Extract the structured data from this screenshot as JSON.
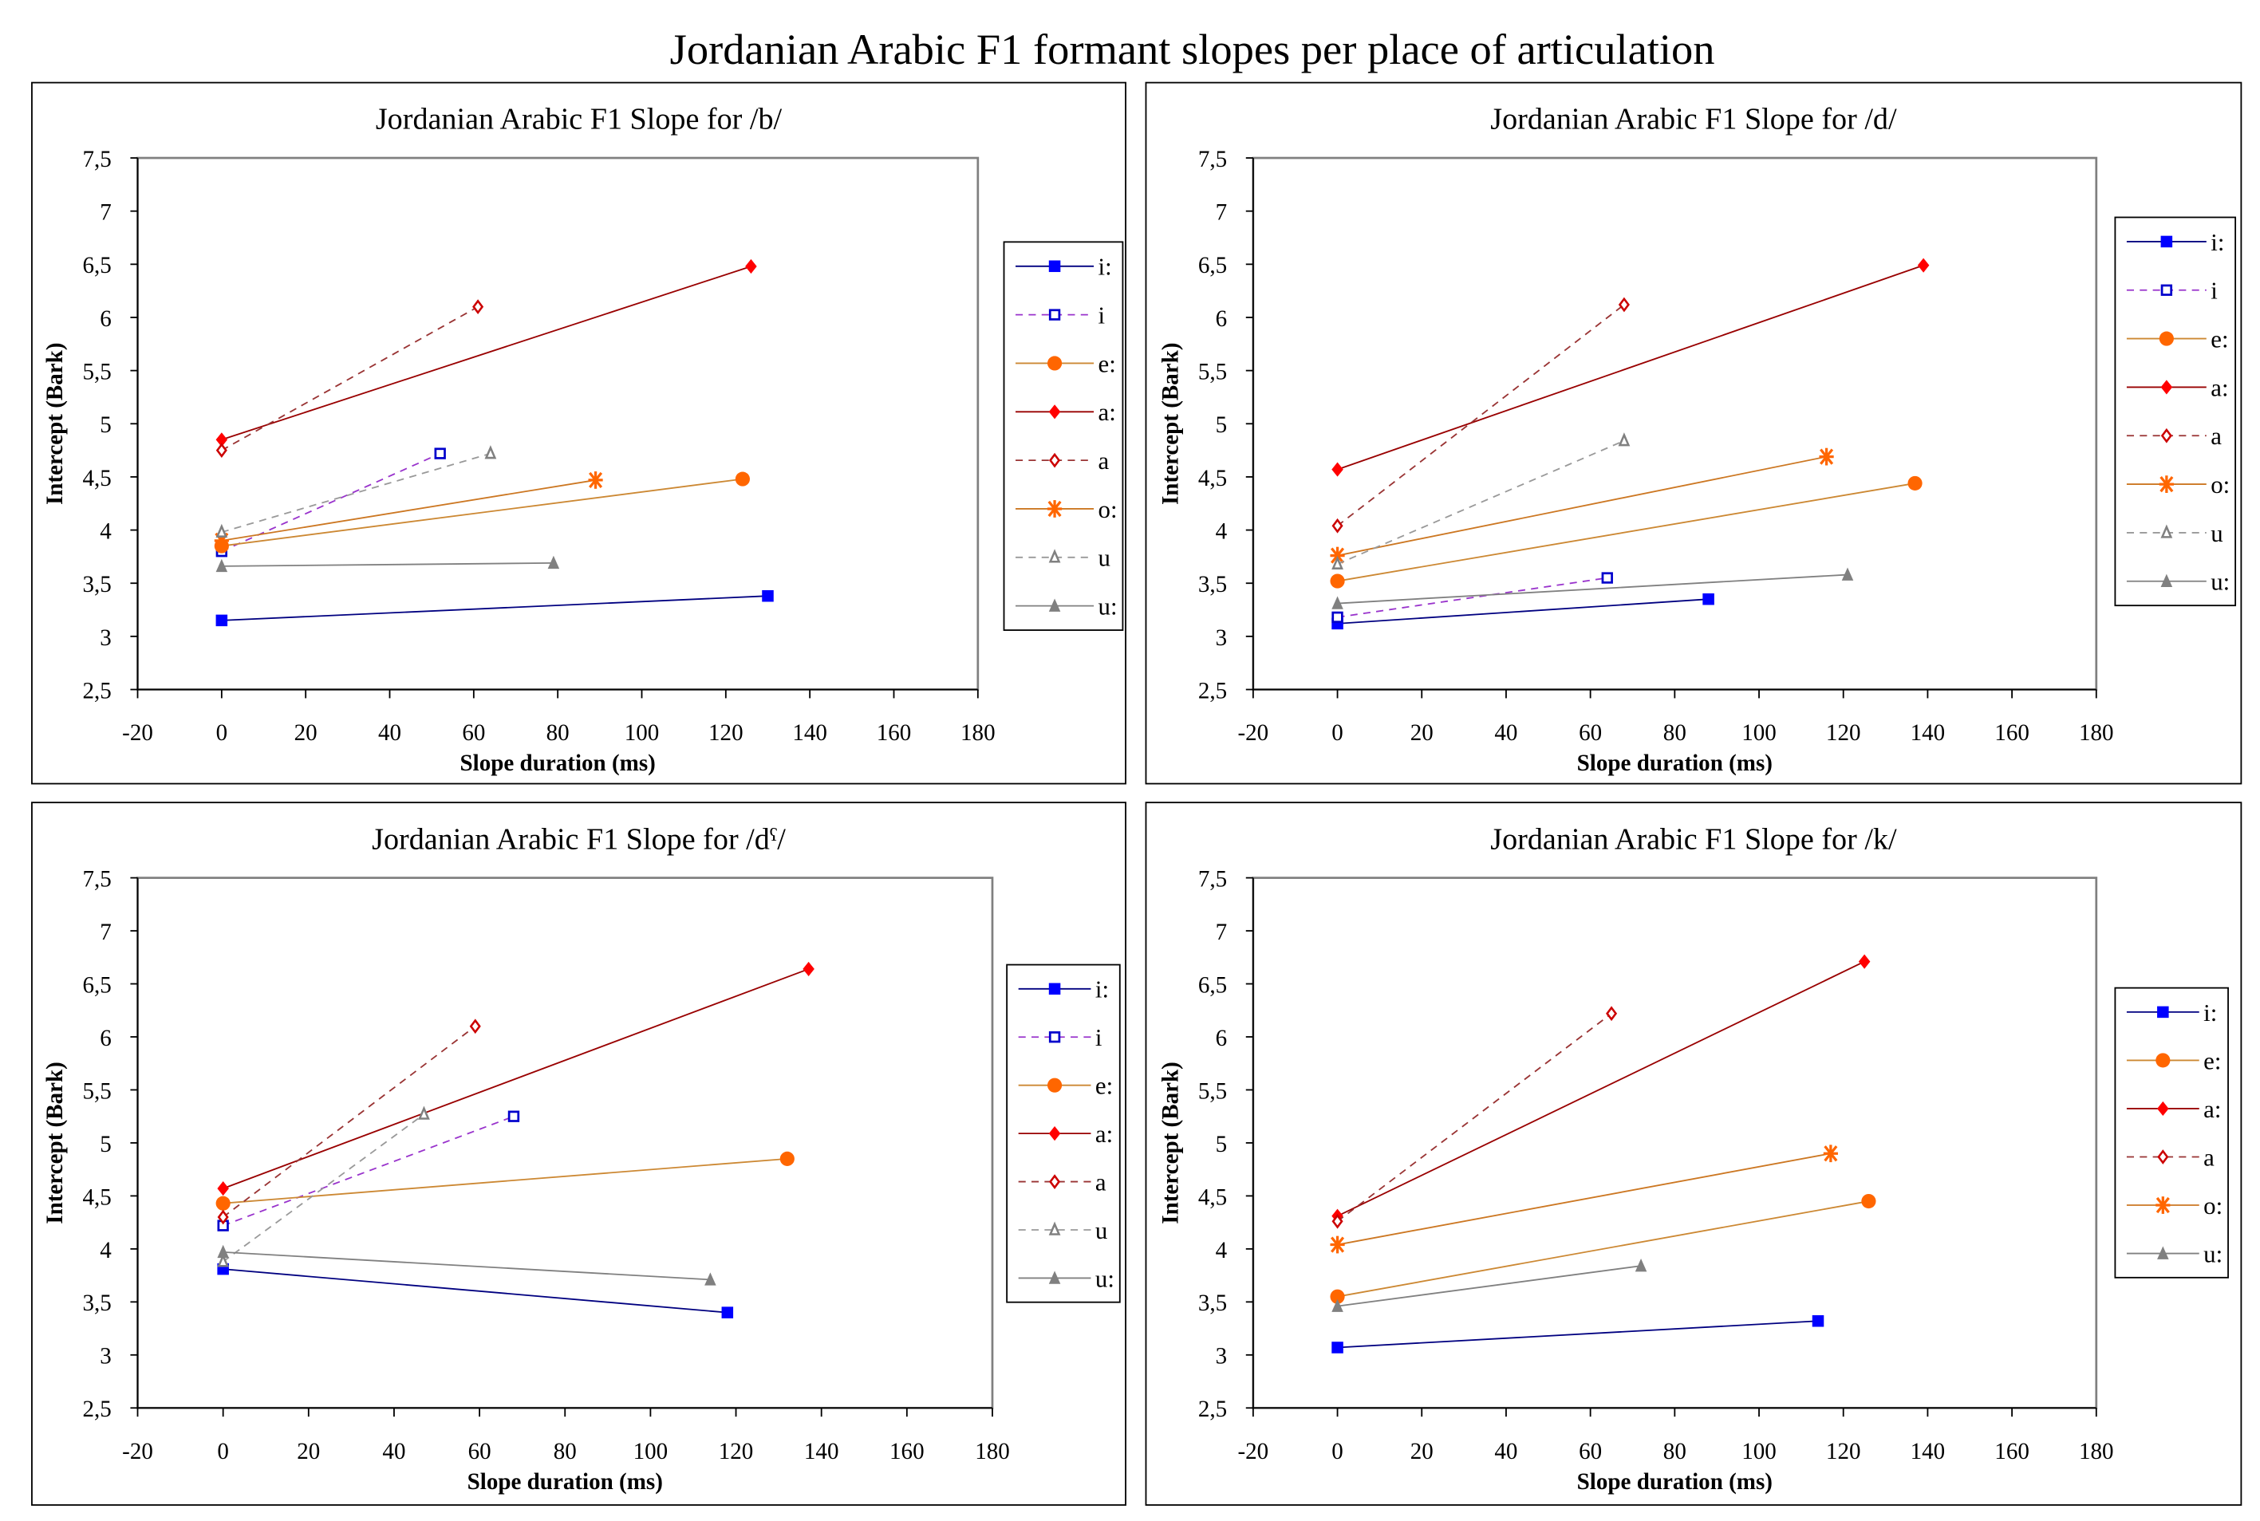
{
  "main_title": "Jordanian Arabic F1  formant slopes per place of articulation",
  "chart_data": [
    {
      "type": "line",
      "title": "Jordanian Arabic F1 Slope for /b/",
      "xlabel": "Slope duration (ms)",
      "ylabel": "Intercept (Bark)",
      "xlim": [
        -20,
        180
      ],
      "ylim": [
        2.5,
        7.5
      ],
      "xticks": [
        "-20",
        "0",
        "20",
        "40",
        "60",
        "80",
        "100",
        "120",
        "140",
        "160",
        "180"
      ],
      "yticks": [
        "2,5",
        "3",
        "3,5",
        "4",
        "4,5",
        "5",
        "5,5",
        "6",
        "6,5",
        "7",
        "7,5"
      ],
      "legend": "right",
      "series": [
        {
          "name": "i:",
          "x": [
            0,
            130
          ],
          "y": [
            3.15,
            3.38
          ]
        },
        {
          "name": "i",
          "x": [
            0,
            52
          ],
          "y": [
            3.8,
            4.72
          ]
        },
        {
          "name": "e:",
          "x": [
            0,
            124
          ],
          "y": [
            3.85,
            4.48
          ]
        },
        {
          "name": "a:",
          "x": [
            0,
            126
          ],
          "y": [
            4.85,
            6.48
          ]
        },
        {
          "name": "a",
          "x": [
            0,
            61
          ],
          "y": [
            4.75,
            6.1
          ]
        },
        {
          "name": "o:",
          "x": [
            0,
            89
          ],
          "y": [
            3.9,
            4.47
          ]
        },
        {
          "name": "u",
          "x": [
            0,
            64
          ],
          "y": [
            3.98,
            4.72
          ]
        },
        {
          "name": "u:",
          "x": [
            0,
            79
          ],
          "y": [
            3.66,
            3.69
          ]
        }
      ]
    },
    {
      "type": "line",
      "title": "Jordanian Arabic F1 Slope for /d/",
      "xlabel": "Slope duration (ms)",
      "ylabel": "Intercept (Bark)",
      "xlim": [
        -20,
        180
      ],
      "ylim": [
        2.5,
        7.5
      ],
      "xticks": [
        "-20",
        "0",
        "20",
        "40",
        "60",
        "80",
        "100",
        "120",
        "140",
        "160",
        "180"
      ],
      "yticks": [
        "2,5",
        "3",
        "3,5",
        "4",
        "4,5",
        "5",
        "5,5",
        "6",
        "6,5",
        "7",
        "7,5"
      ],
      "legend": "right",
      "series": [
        {
          "name": "i:",
          "x": [
            0,
            88
          ],
          "y": [
            3.12,
            3.35
          ]
        },
        {
          "name": "i",
          "x": [
            0,
            64
          ],
          "y": [
            3.18,
            3.55
          ]
        },
        {
          "name": "e:",
          "x": [
            0,
            137
          ],
          "y": [
            3.52,
            4.44
          ]
        },
        {
          "name": "a:",
          "x": [
            0,
            139
          ],
          "y": [
            4.57,
            6.49
          ]
        },
        {
          "name": "a",
          "x": [
            0,
            68
          ],
          "y": [
            4.04,
            6.12
          ]
        },
        {
          "name": "o:",
          "x": [
            0,
            116
          ],
          "y": [
            3.76,
            4.69
          ]
        },
        {
          "name": "u",
          "x": [
            0,
            68
          ],
          "y": [
            3.68,
            4.84
          ]
        },
        {
          "name": "u:",
          "x": [
            0,
            121
          ],
          "y": [
            3.31,
            3.58
          ]
        }
      ]
    },
    {
      "type": "line",
      "title": "Jordanian Arabic F1 Slope for /dˤ/",
      "xlabel": "Slope duration (ms)",
      "ylabel": "Intercept (Bark)",
      "xlim": [
        -20,
        180
      ],
      "ylim": [
        2.5,
        7.5
      ],
      "xticks": [
        "-20",
        "0",
        "20",
        "40",
        "60",
        "80",
        "100",
        "120",
        "140",
        "160",
        "180"
      ],
      "yticks": [
        "2,5",
        "3",
        "3,5",
        "4",
        "4,5",
        "5",
        "5,5",
        "6",
        "6,5",
        "7",
        "7,5"
      ],
      "legend": "right",
      "series": [
        {
          "name": "i:",
          "x": [
            0,
            118
          ],
          "y": [
            3.81,
            3.4
          ]
        },
        {
          "name": "i",
          "x": [
            0,
            68
          ],
          "y": [
            4.22,
            5.25
          ]
        },
        {
          "name": "e:",
          "x": [
            0,
            132
          ],
          "y": [
            4.43,
            4.85
          ]
        },
        {
          "name": "a:",
          "x": [
            0,
            137
          ],
          "y": [
            4.57,
            6.64
          ]
        },
        {
          "name": "a",
          "x": [
            0,
            59
          ],
          "y": [
            4.3,
            6.1
          ]
        },
        {
          "name": "u",
          "x": [
            0,
            47
          ],
          "y": [
            3.88,
            5.27
          ]
        },
        {
          "name": "u:",
          "x": [
            0,
            114
          ],
          "y": [
            3.97,
            3.71
          ]
        }
      ]
    },
    {
      "type": "line",
      "title": "Jordanian Arabic F1 Slope for /k/",
      "xlabel": "Slope duration (ms)",
      "ylabel": "Intercept (Bark)",
      "xlim": [
        -20,
        180
      ],
      "ylim": [
        2.5,
        7.5
      ],
      "xticks": [
        "-20",
        "0",
        "20",
        "40",
        "60",
        "80",
        "100",
        "120",
        "140",
        "160",
        "180"
      ],
      "yticks": [
        "2,5",
        "3",
        "3,5",
        "4",
        "4,5",
        "5",
        "5,5",
        "6",
        "6,5",
        "7",
        "7,5"
      ],
      "legend": "right",
      "series": [
        {
          "name": "i:",
          "x": [
            0,
            114
          ],
          "y": [
            3.07,
            3.32
          ]
        },
        {
          "name": "e:",
          "x": [
            0,
            126
          ],
          "y": [
            3.55,
            4.45
          ]
        },
        {
          "name": "a:",
          "x": [
            0,
            125
          ],
          "y": [
            4.31,
            6.71
          ]
        },
        {
          "name": "a",
          "x": [
            0,
            65
          ],
          "y": [
            4.26,
            6.22
          ]
        },
        {
          "name": "o:",
          "x": [
            0,
            117
          ],
          "y": [
            4.04,
            4.9
          ]
        },
        {
          "name": "u:",
          "x": [
            0,
            72
          ],
          "y": [
            3.46,
            3.84
          ]
        }
      ]
    }
  ],
  "series_styles": {
    "i:": {
      "marker": "square-filled",
      "color": "#0000ff",
      "line_color": "#000080",
      "dashed": false
    },
    "i": {
      "marker": "square-open",
      "color": "#0000cc",
      "line_color": "#9933cc",
      "dashed": true
    },
    "e:": {
      "marker": "circle-filled",
      "color": "#ff6600",
      "line_color": "#cc8833",
      "dashed": false
    },
    "a:": {
      "marker": "diamond-filled",
      "color": "#ff0000",
      "line_color": "#990000",
      "dashed": false
    },
    "a": {
      "marker": "diamond-open",
      "color": "#cc0000",
      "line_color": "#993333",
      "dashed": true
    },
    "o:": {
      "marker": "asterisk",
      "color": "#ff6600",
      "line_color": "#cc7722",
      "dashed": false
    },
    "u": {
      "marker": "triangle-open",
      "color": "#808080",
      "line_color": "#999999",
      "dashed": true
    },
    "u:": {
      "marker": "triangle-filled",
      "color": "#808080",
      "line_color": "#808080",
      "dashed": false
    }
  }
}
